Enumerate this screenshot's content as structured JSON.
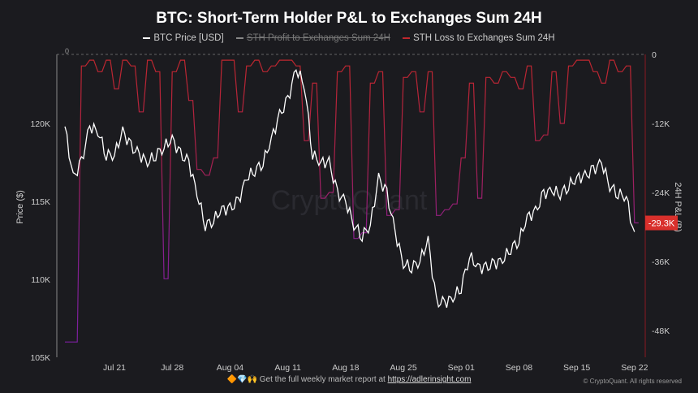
{
  "chart_data": {
    "type": "line",
    "title": "BTC: Short-Term Holder P&L to Exchanges Sum 24H",
    "legend": [
      {
        "name": "BTC Price [USD]",
        "color": "#ffffff",
        "hidden": false
      },
      {
        "name": "STH Profit to Exchanges Sum 24H",
        "color": "#888888",
        "hidden": true
      },
      {
        "name": "STH Loss to Exchanges Sum 24H",
        "color": "#c0272d",
        "hidden": false
      }
    ],
    "legend_position": "top",
    "x_start": "2025-07-15",
    "x_step_days": 1,
    "x_tick_labels": [
      "Jul 21",
      "Jul 28",
      "Aug 04",
      "Aug 11",
      "Aug 18",
      "Aug 25",
      "Sep 01",
      "Sep 08",
      "Sep 15",
      "Sep 22"
    ],
    "ylabel_left": "Price ($)",
    "ylim_left": [
      105000,
      124500
    ],
    "y_ticks_left": [
      "105K",
      "110K",
      "115K",
      "120K"
    ],
    "ylabel_right": "24H P&L (B)",
    "ylim_right": [
      -52000,
      0
    ],
    "y_ticks_right": [
      "0",
      "-12K",
      "-24K",
      "-36K",
      "-48K"
    ],
    "current_value_label": "-29.3K",
    "grid": false,
    "series": [
      {
        "name": "BTC Price [USD]",
        "values": [
          119800,
          116500,
          117500,
          119800,
          119500,
          118000,
          118000,
          119500,
          118500,
          118000,
          117500,
          118000,
          118500,
          119000,
          118000,
          117500,
          115500,
          113500,
          113800,
          114500,
          114500,
          115000,
          116500,
          117000,
          117500,
          119000,
          120500,
          121500,
          123500,
          122500,
          118000,
          117500,
          117500,
          115500,
          115000,
          113500,
          112800,
          113500,
          116500,
          115500,
          113000,
          111000,
          110800,
          111200,
          112500,
          108500,
          108500,
          108800,
          109500,
          111500,
          110800,
          110700,
          111000,
          111200,
          112000,
          112500,
          114000,
          114300,
          115500,
          115700,
          115500,
          116000,
          116500,
          116600,
          117000,
          117500,
          116000,
          115500,
          115300,
          112700
        ]
      },
      {
        "name": "STH Loss to Exchanges Sum 24H",
        "values": [
          -50000,
          -50000,
          -2000,
          -1000,
          -3000,
          -1000,
          -6000,
          -1000,
          -2000,
          -10000,
          -1000,
          -3000,
          -39000,
          -3000,
          -1000,
          -8000,
          -20000,
          -21000,
          -18000,
          -1000,
          -1000,
          -10000,
          -2000,
          -1000,
          -3000,
          -2000,
          -1000,
          -1000,
          -2000,
          -15000,
          -5000,
          -25000,
          -24000,
          -3000,
          -2000,
          -32000,
          -31000,
          -5000,
          -3000,
          -28000,
          -27000,
          -4000,
          -3000,
          -10000,
          -3000,
          -28000,
          -27000,
          -26000,
          -18000,
          -5000,
          -25000,
          -4000,
          -5000,
          -3000,
          -4000,
          -6000,
          -2000,
          -15000,
          -14000,
          -3000,
          -12000,
          -2000,
          -1000,
          -1000,
          -3000,
          -5000,
          -1000,
          -3000,
          -2000,
          -29300
        ]
      }
    ]
  },
  "footer": {
    "text": "Get the full weekly market report at ",
    "link": "https://adlerinsight.com",
    "emoji": "🔶💎🙌"
  },
  "copyright": "© CryptoQuant. All rights reserved",
  "watermark": "CryptoQuant"
}
